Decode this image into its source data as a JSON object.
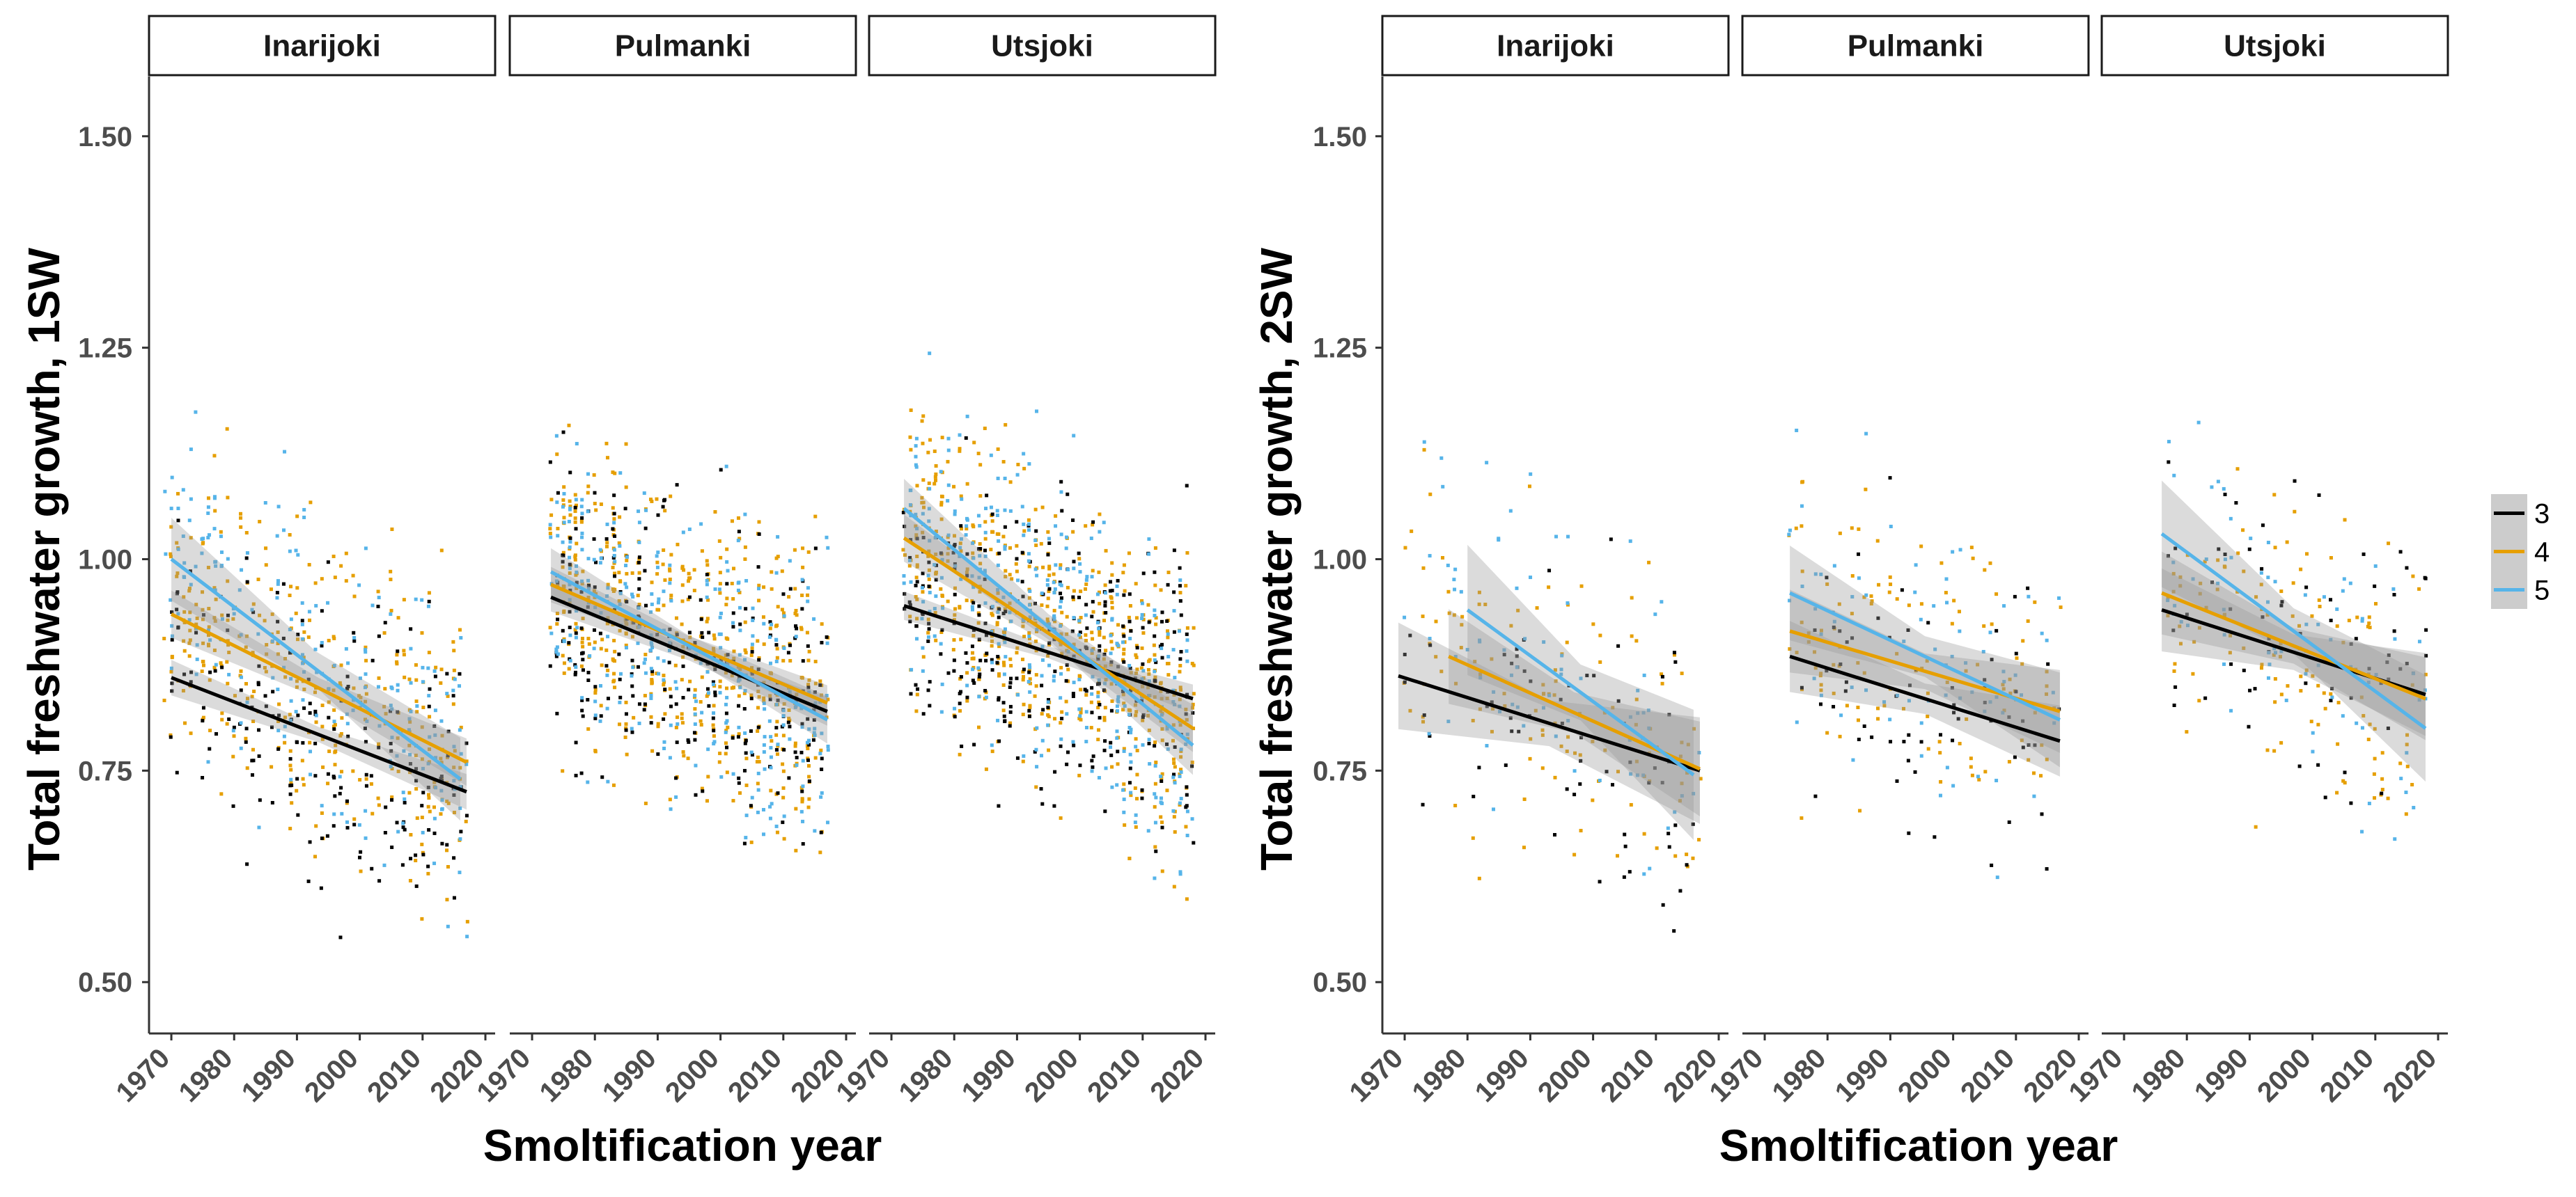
{
  "chart_data": [
    {
      "type": "scatter",
      "panel": "left",
      "ylabel": "Total freshwater growth, 1SW",
      "xlabel": "Smoltification year",
      "ylim": [
        0.45,
        1.55
      ],
      "xlim": [
        1968,
        2020
      ],
      "y_ticks": [
        "0.50",
        "0.75",
        "1.00",
        "1.25",
        "1.50"
      ],
      "x_ticks": [
        "1970",
        "1980",
        "1990",
        "2000",
        "2010",
        "2020"
      ],
      "facets": [
        {
          "name": "Inarijoki",
          "points_density": 1.0,
          "x_range": [
            1969,
            2017
          ],
          "trends": [
            {
              "series": "3",
              "x": [
                1970,
                2017
              ],
              "y": [
                0.86,
                0.725
              ],
              "se": 0.015
            },
            {
              "series": "4",
              "x": [
                1970,
                2017
              ],
              "y": [
                0.935,
                0.76
              ],
              "se": 0.02
            },
            {
              "series": "5",
              "x": [
                1970,
                2016
              ],
              "y": [
                1.0,
                0.74
              ],
              "se": 0.035
            }
          ]
        },
        {
          "name": "Pulmanki",
          "points_density": 1.4,
          "x_range": [
            1973,
            2017
          ],
          "trends": [
            {
              "series": "3",
              "x": [
                1973,
                2017
              ],
              "y": [
                0.955,
                0.82
              ],
              "se": 0.012
            },
            {
              "series": "4",
              "x": [
                1973,
                2017
              ],
              "y": [
                0.97,
                0.83
              ],
              "se": 0.015
            },
            {
              "series": "5",
              "x": [
                1973,
                2017
              ],
              "y": [
                0.985,
                0.81
              ],
              "se": 0.02
            }
          ]
        },
        {
          "name": "Utsjoki",
          "points_density": 1.6,
          "x_range": [
            1972,
            2018
          ],
          "trends": [
            {
              "series": "3",
              "x": [
                1972,
                2018
              ],
              "y": [
                0.945,
                0.835
              ],
              "se": 0.012
            },
            {
              "series": "4",
              "x": [
                1972,
                2018
              ],
              "y": [
                1.025,
                0.8
              ],
              "se": 0.02
            },
            {
              "series": "5",
              "x": [
                1972,
                2018
              ],
              "y": [
                1.06,
                0.78
              ],
              "se": 0.025
            }
          ]
        }
      ]
    },
    {
      "type": "scatter",
      "panel": "right",
      "ylabel": "Total freshwater growth, 2SW",
      "xlabel": "Smoltification year",
      "ylim": [
        0.45,
        1.55
      ],
      "xlim": [
        1968,
        2020
      ],
      "y_ticks": [
        "0.50",
        "0.75",
        "1.00",
        "1.25",
        "1.50"
      ],
      "x_ticks": [
        "1970",
        "1980",
        "1990",
        "2000",
        "2010",
        "2020"
      ],
      "facets": [
        {
          "name": "Inarijoki",
          "points_density": 0.35,
          "x_range": [
            1970,
            2017
          ],
          "trends": [
            {
              "series": "3",
              "x": [
                1969,
                2017
              ],
              "y": [
                0.862,
                0.75
              ],
              "se": 0.045
            },
            {
              "series": "4",
              "x": [
                1977,
                2017
              ],
              "y": [
                0.885,
                0.752
              ],
              "se": 0.04
            },
            {
              "series": "5",
              "x": [
                1980,
                2016
              ],
              "y": [
                0.94,
                0.745
              ],
              "se": 0.055
            }
          ]
        },
        {
          "name": "Pulmanki",
          "points_density": 0.35,
          "x_range": [
            1974,
            2017
          ],
          "trends": [
            {
              "series": "3",
              "x": [
                1974,
                2017
              ],
              "y": [
                0.885,
                0.785
              ],
              "se": 0.03
            },
            {
              "series": "4",
              "x": [
                1974,
                2017
              ],
              "y": [
                0.915,
                0.82
              ],
              "se": 0.035
            },
            {
              "series": "5",
              "x": [
                1974,
                2017
              ],
              "y": [
                0.96,
                0.81
              ],
              "se": 0.04
            }
          ]
        },
        {
          "name": "Utsjoki",
          "points_density": 0.35,
          "x_range": [
            1976,
            2018
          ],
          "trends": [
            {
              "series": "3",
              "x": [
                1976,
                2018
              ],
              "y": [
                0.94,
                0.84
              ],
              "se": 0.035
            },
            {
              "series": "4",
              "x": [
                1976,
                2018
              ],
              "y": [
                0.96,
                0.835
              ],
              "se": 0.035
            },
            {
              "series": "5",
              "x": [
                1976,
                2018
              ],
              "y": [
                1.03,
                0.8
              ],
              "se": 0.045
            }
          ]
        }
      ]
    }
  ],
  "legend": {
    "items": [
      {
        "label": "3",
        "color": "#000000"
      },
      {
        "label": "4",
        "color": "#E69F00"
      },
      {
        "label": "5",
        "color": "#56B4E9"
      }
    ],
    "placement": "right"
  },
  "colors": {
    "band": "#999999",
    "axis": "#333333",
    "strip_border": "#1a1a1a"
  }
}
